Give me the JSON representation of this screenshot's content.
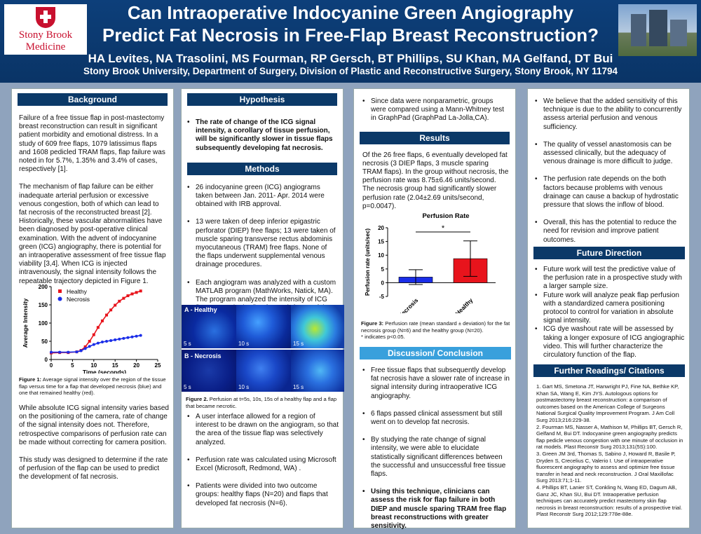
{
  "header": {
    "title_line1": "Can Intraoperative Indocyanine Green Angiography",
    "title_line2": "Predict Fat Necrosis in Free-Flap Breast Reconstruction?",
    "authors": "HA Levites, NA Trasolini, MS Fourman, RP Gersch, BT Phillips, SU Khan, MA Gelfand, DT Bui",
    "affiliation": "Stony Brook University, Department of Surgery, Division of Plastic and Reconstructive Surgery, Stony Brook, NY 11794",
    "logo_line1": "Stony Brook",
    "logo_line2": "Medicine"
  },
  "background": {
    "heading": "Background",
    "p1": "Failure of a free tissue flap in post-mastectomy breast reconstruction can result in significant patient morbidity and emotional distress. In a study of 609 free flaps, 1079 latissimus flaps and 1608 pedicled TRAM flaps, flap failure was noted in for 5.7%, 1.35% and 3.4% of cases, respectively [1].",
    "p2": "The mechanism of flap failure can be either inadequate arterial perfusion or excessive venous congestion, both of which can lead to fat necrosis of the reconstructed breast [2]. Historically, these vascular abnormalities have been diagnosed by post-operative clinical examination. With the advent of indocyanine green (ICG) angiography, there is potential for an intraoperative assessment of free tissue flap viability [3,4]. When ICG is injected intravenously, the signal intensity follows the repeatable trajectory depicted in Figure 1.",
    "fig1_caption_bold": "Figure 1:",
    "fig1_caption": " Average signal intensity over the region of the tissue flap versus time for a flap that developed necrosis (blue) and one that remained healthy (red).",
    "p3": "While absolute ICG signal intensity varies based on the positioning of the camera, rate of change of the signal intensity does not. Therefore, retrospective comparisons of perfusion rate can be made without correcting for camera position.",
    "p4": "This study was designed to determine if the rate of perfusion of the flap can be used to predict the development of fat necrosis."
  },
  "hypothesis": {
    "heading": "Hypothesis",
    "text": "The rate of change of the ICG signal intensity, a corollary of tissue perfusion, will be significantly slower in tissue flaps subsequently developing fat necrosis."
  },
  "methods": {
    "heading": "Methods",
    "items": [
      "26 indocyanine green (ICG) angiograms taken between Jan. 2011- Apr. 2014 were obtained with IRB approval.",
      "13 were taken of deep inferior epigastric perforator (DIEP) free flaps; 13 were taken of muscle sparing transverse rectus abdominis myocutaneous (TRAM) free flaps. None of the flaps underwent supplemental venous drainage procedures.",
      "Each angiogram was analyzed with a custom MATLAB program (MathWorks, Natick, MA). The program analyzed the intensity of ICG florescence in the flap for each frame of the angiogram video"
    ],
    "fig2_label_healthy": "A - Healthy",
    "fig2_label_necrosis": "B - Necrosis",
    "fig2_times": [
      "5 s",
      "10 s",
      "15 s"
    ],
    "fig2_caption_bold": "Figure 2.",
    "fig2_caption": " Perfusion at t=5s, 10s, 15s of a healthy flap and a flap that became necrotic.",
    "items2": [
      "A user interface allowed for a region of interest to be drawn on the angiogram, so that the area of the tissue flap was selectively analyzed.",
      "Perfusion rate was calculated using Microsoft Excel (Microsoft, Redmond, WA) .",
      "Patients were divided into two outcome groups: healthy flaps (N=20) and flaps that developed fat necrosis (N=6)."
    ]
  },
  "col3": {
    "stats_item": "Since data were nonparametric, groups were compared using a Mann-Whitney test in GraphPad (GraphPad La-Jolla,CA).",
    "results_heading": "Results",
    "results_text": "Of the 26 free flaps, 6 eventually developed fat necrosis (3 DIEP flaps, 3 muscle sparing TRAM flaps). In the group without necrosis, the perfusion rate was 8.75±6.46 units/second. The necrosis group had significantly slower perfusion rate (2.04±2.69  units/second, p=0.0047).",
    "fig3_caption_bold": "Figure 3:",
    "fig3_caption": " Perfusion rate (mean standard ± deviation) for the fat necrosis group (N=6) and the healthy group (N=20).",
    "fig3_note": "* indicates p<0.05.",
    "discussion_heading": "Discussion/ Conclusion",
    "discussion_items": [
      "Free tissue flaps that subsequently develop fat necrosis have a slower rate of increase in signal intensity during intraoperative ICG angiography.",
      "6 flaps passed clinical assessment but still went on to develop fat necrosis.",
      "By studying the rate change of signal intensity, we were able to elucidate statistically significant differences between the successful and unsuccessful free tissue flaps."
    ],
    "discussion_bold": "Using this technique, clinicians can assess the risk for flap failure in both DIEP and muscle sparing TRAM free flap breast reconstructions with greater sensitivity."
  },
  "col4": {
    "items": [
      "We believe that the added sensitivity of this technique is due to the ability to concurrently assess arterial perfusion and venous sufficiency.",
      "The quality of vessel anastomosis can be assessed clinically, but the adequacy of venous drainage is more difficult to judge.",
      "The perfusion rate depends on the both factors because problems with venous drainage can cause a backup of hydrostatic pressure that slows the inflow of blood.",
      "Overall, this has the potential to reduce the need for revision and improve patient outcomes."
    ],
    "future_heading": "Future Direction",
    "future_items": [
      "Future work will test the predictive value of the perfusion rate in a prospective study with a larger sample size.",
      "Future work will analyze peak flap perfusion with a standardized camera positioning protocol to control for variation in absolute signal intensity.",
      "ICG dye washout rate will be assessed by taking a longer exposure of ICG angiographic video. This will further characterize the circulatory function of the flap."
    ],
    "readings_heading": "Further Readings/ Citations",
    "refs": [
      "1. Gart MS, Smetona JT, Hanwright PJ, Fine NA, Bethke KP, Khan SA, Wang E, Kim JYS. Autologous options for postmastectomy breast reconstruction: a comparison of outcomes based on the American College of Surgeons National Surgical Quality Improvement Program. J Am Coll Surg 2013;216:229-38.",
      "2. Fourman MS, Nasser A, Mathison M, Phillips BT, Gersch R, Gelfand M, Bui DT. Indocyanine green angiography predicts flap pedicle venous congestion with one minute of occlusion in rat models. Plast Reconstr Surg 2013;131(5S):100.",
      "3. Green JM 3rd, Thomas S, Sabino J, Howard R, Basile P, Dryden S, Crecelius C, Valerio I. Use of intraoperative fluorescent angiography to assess and optimize free tissue transfer in head and neck reconstruction. J Oral Maxillofac Surg 2013:71;1-11.",
      "4. Phillips BT, Lanier ST, Conkling N, Wang ED, Dagum AB, Ganz JC, Khan SU, Bui DT. Intraoperative perfusion techniques can accurately predict mastectomy skin flap necrosis in breast reconstruction: results of a prospective trial. Plast Reconstr Surg 2012;129:778e-88e."
    ]
  },
  "chart_data": [
    {
      "type": "line",
      "title": "",
      "xlabel": "Time (seconds)",
      "ylabel": "Average Intensity",
      "xlim": [
        0,
        25
      ],
      "ylim": [
        0,
        200
      ],
      "xticks": [
        0,
        5,
        10,
        15,
        20,
        25
      ],
      "yticks": [
        0,
        50,
        100,
        150,
        200
      ],
      "legend_position": "top-left",
      "series": [
        {
          "name": "Healthy",
          "color": "#e8141c",
          "x": [
            0,
            2,
            4,
            6,
            7,
            8,
            9,
            10,
            11,
            12,
            13,
            14,
            15,
            16,
            17,
            18,
            19,
            20,
            21
          ],
          "y": [
            18,
            19,
            19,
            21,
            25,
            35,
            50,
            68,
            88,
            106,
            122,
            136,
            149,
            160,
            168,
            175,
            180,
            184,
            188
          ]
        },
        {
          "name": "Necrosis",
          "color": "#1a2de8",
          "x": [
            0,
            2,
            4,
            6,
            7,
            8,
            9,
            10,
            11,
            12,
            13,
            14,
            15,
            16,
            17,
            18,
            19,
            20,
            21
          ],
          "y": [
            20,
            20,
            20,
            21,
            24,
            30,
            36,
            41,
            45,
            48,
            50,
            52,
            54,
            56,
            58,
            60,
            62,
            64,
            66
          ]
        }
      ]
    },
    {
      "type": "bar",
      "title": "Perfusion  Rate",
      "ylabel": "Perfusion rate (units/sec)",
      "categories": [
        "Necrosis",
        "Healthy"
      ],
      "values": [
        2.04,
        8.75
      ],
      "errors": [
        2.69,
        6.46
      ],
      "colors": [
        "#1a2de8",
        "#e8141c"
      ],
      "ylim": [
        -5,
        20
      ],
      "yticks": [
        -5,
        0,
        5,
        10,
        15,
        20
      ],
      "annotation": "*"
    }
  ]
}
